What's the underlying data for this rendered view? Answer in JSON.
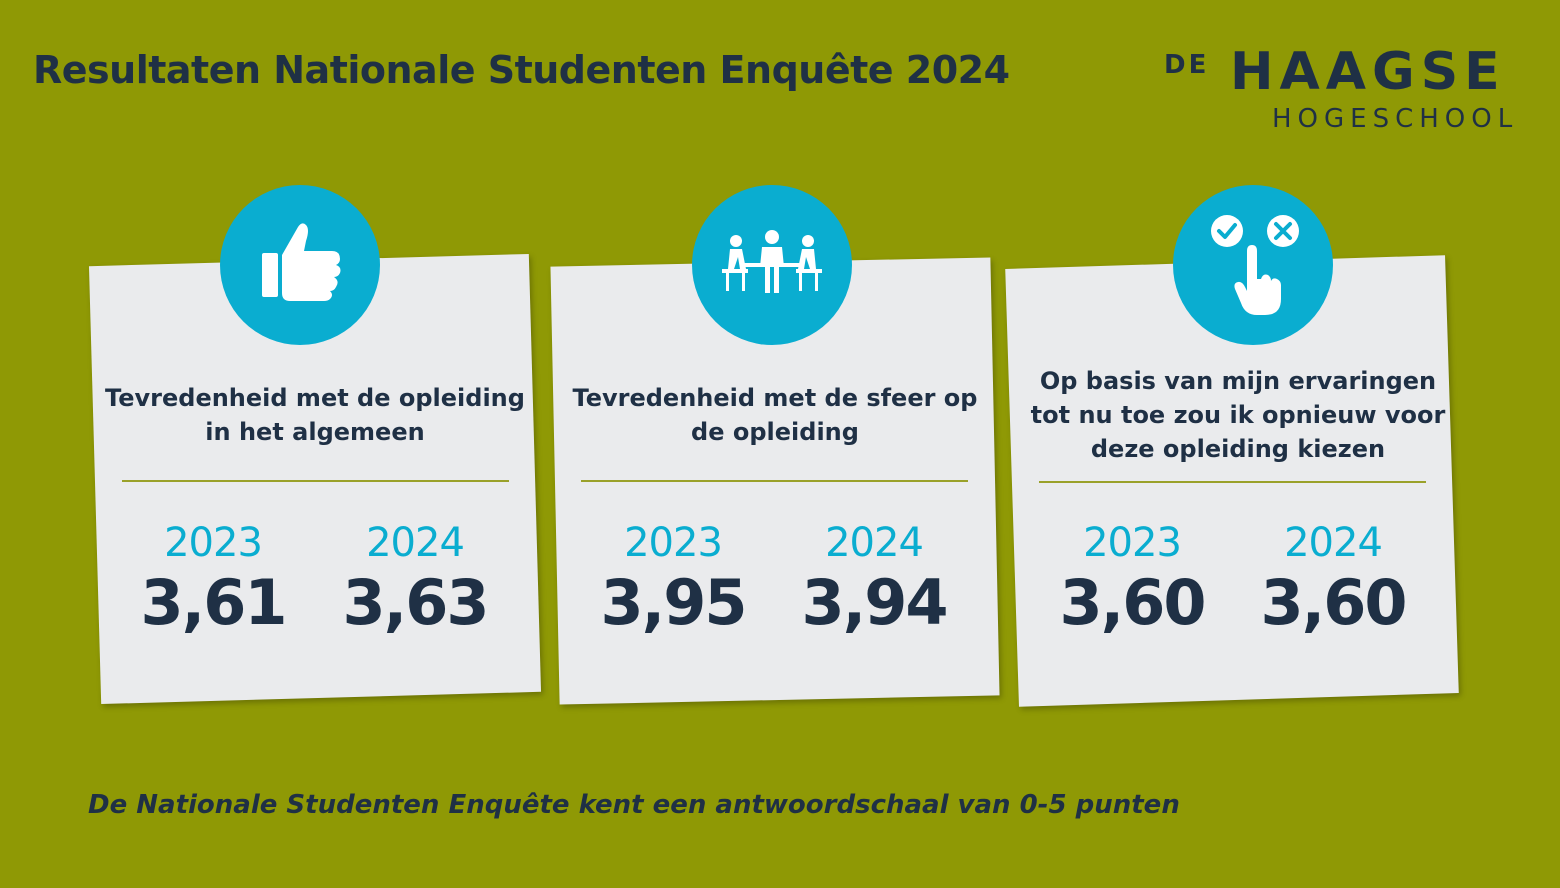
{
  "header": {
    "title": "Resultaten Nationale Studenten Enquête 2024"
  },
  "logo": {
    "de": "DE",
    "haagse": "HAAGSE",
    "hogeschool": "HOGESCHOOL"
  },
  "colors": {
    "background": "#8f9905",
    "navy": "#1f3045",
    "accent": "#0aadd0",
    "card": "#eaebed"
  },
  "cards": [
    {
      "icon": "thumbs-up-icon",
      "label": "Tevredenheid met de opleiding in het algemeen",
      "year_a": "2023",
      "score_a": "3,61",
      "year_b": "2024",
      "score_b": "3,63"
    },
    {
      "icon": "meeting-people-icon",
      "label": "Tevredenheid met de sfeer op de opleiding",
      "year_a": "2023",
      "score_a": "3,95",
      "year_b": "2024",
      "score_b": "3,94"
    },
    {
      "icon": "choice-hand-icon",
      "label": "Op basis van mijn ervaringen tot nu toe zou ik opnieuw voor deze opleiding kiezen",
      "year_a": "2023",
      "score_a": "3,60",
      "year_b": "2024",
      "score_b": "3,60"
    }
  ],
  "footer": {
    "note": "De Nationale Studenten Enquête kent een antwoordschaal van 0-5 punten"
  }
}
